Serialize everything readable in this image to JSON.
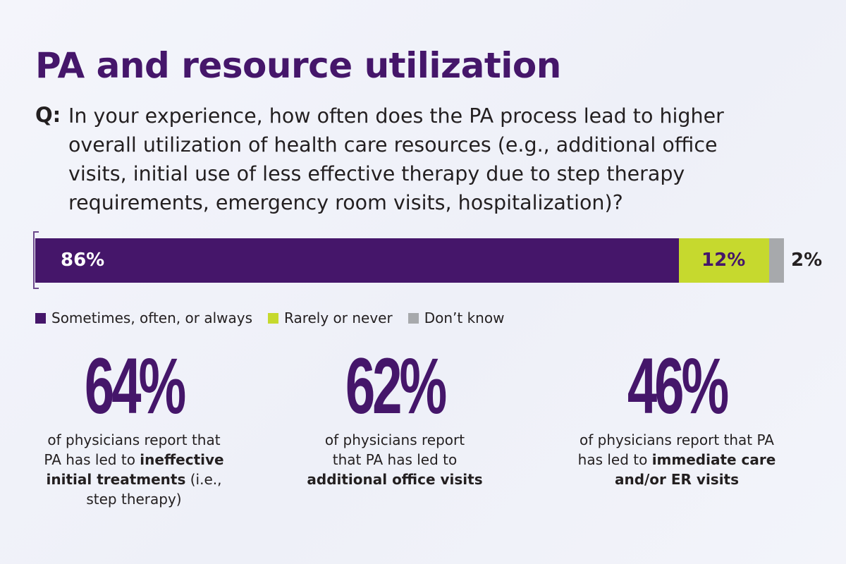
{
  "title": "PA and resource utilization",
  "question": {
    "label": "Q:",
    "lines": [
      "In your experience, how often does the PA process lead to higher",
      "overall utilization of health care resources (e.g., additional office",
      "visits, initial use of less effective therapy due to step therapy",
      "requirements, emergency room visits, hospitalization)?"
    ]
  },
  "chart_data": {
    "type": "bar",
    "orientation": "horizontal-stacked",
    "categories": [
      ""
    ],
    "series": [
      {
        "name": "Sometimes, often, or always",
        "values": [
          86
        ],
        "label": "86%",
        "color": "#45166a"
      },
      {
        "name": "Rarely or never",
        "values": [
          12
        ],
        "label": "12%",
        "color": "#c6d92e"
      },
      {
        "name": "Don’t know",
        "values": [
          2
        ],
        "label": "2%",
        "color": "#a7a9ac"
      }
    ],
    "xlim": [
      0,
      100
    ],
    "legend": "bottom-left"
  },
  "legend": [
    {
      "label": "Sometimes, often, or always",
      "color": "#45166a"
    },
    {
      "label": "Rarely or never",
      "color": "#c6d92e"
    },
    {
      "label": "Don’t know",
      "color": "#a7a9ac"
    }
  ],
  "stats": [
    {
      "value": "64%",
      "lines": [
        [
          {
            "t": "of physicians report that",
            "b": false
          }
        ],
        [
          {
            "t": "PA has led to ",
            "b": false
          },
          {
            "t": "ineffective",
            "b": true
          }
        ],
        [
          {
            "t": "initial treatments",
            "b": true
          },
          {
            "t": " (i.e.,",
            "b": false
          }
        ],
        [
          {
            "t": "step therapy)",
            "b": false
          }
        ]
      ]
    },
    {
      "value": "62%",
      "lines": [
        [
          {
            "t": "of physicians report",
            "b": false
          }
        ],
        [
          {
            "t": "that PA has led to",
            "b": false
          }
        ],
        [
          {
            "t": "additional office visits",
            "b": true
          }
        ]
      ]
    },
    {
      "value": "46%",
      "lines": [
        [
          {
            "t": "of physicians report that PA",
            "b": false
          }
        ],
        [
          {
            "t": "has led to ",
            "b": false
          },
          {
            "t": "immediate care",
            "b": true
          }
        ],
        [
          {
            "t": "and/or ER visits",
            "b": true
          }
        ]
      ]
    }
  ]
}
